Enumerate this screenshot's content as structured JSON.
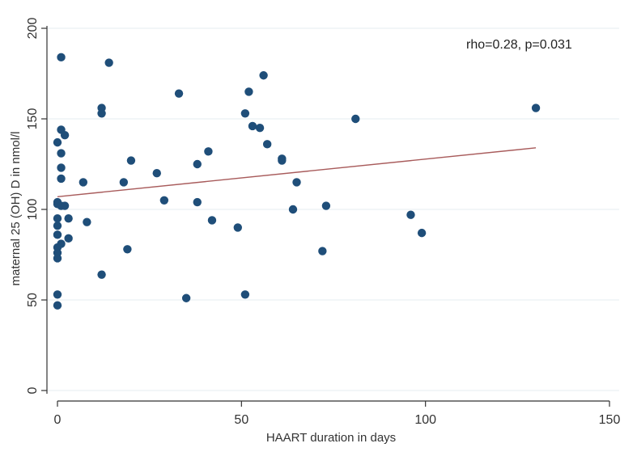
{
  "chart_data": {
    "type": "scatter",
    "title": "",
    "xlabel": "HAART duration in days",
    "ylabel": "maternal 25 (OH) D in nmol/l",
    "xlim": [
      0,
      150
    ],
    "ylim": [
      0,
      200
    ],
    "x_ticks": [
      "0",
      "50",
      "100",
      "150"
    ],
    "y_ticks": [
      "0",
      "50",
      "100",
      "150",
      "200"
    ],
    "grid": true,
    "annotation": "rho=0.28, p=0.031",
    "fit_line": {
      "x": [
        0,
        130
      ],
      "y": [
        107,
        134
      ]
    },
    "colors": {
      "points": "#1f4e79",
      "fit_line": "#a85b5b",
      "grid": "#e6ecf0",
      "axis": "#333333"
    },
    "points": [
      {
        "x": 1,
        "y": 184
      },
      {
        "x": 14,
        "y": 181
      },
      {
        "x": 56,
        "y": 174
      },
      {
        "x": 52,
        "y": 165
      },
      {
        "x": 33,
        "y": 164
      },
      {
        "x": 130,
        "y": 156
      },
      {
        "x": 12,
        "y": 156
      },
      {
        "x": 12,
        "y": 153
      },
      {
        "x": 51,
        "y": 153
      },
      {
        "x": 81,
        "y": 150
      },
      {
        "x": 53,
        "y": 146
      },
      {
        "x": 55,
        "y": 145
      },
      {
        "x": 1,
        "y": 144
      },
      {
        "x": 2,
        "y": 141
      },
      {
        "x": 0,
        "y": 137
      },
      {
        "x": 57,
        "y": 136
      },
      {
        "x": 41,
        "y": 132
      },
      {
        "x": 1,
        "y": 131
      },
      {
        "x": 61,
        "y": 128
      },
      {
        "x": 61,
        "y": 127
      },
      {
        "x": 20,
        "y": 127
      },
      {
        "x": 38,
        "y": 125
      },
      {
        "x": 1,
        "y": 123
      },
      {
        "x": 27,
        "y": 120
      },
      {
        "x": 1,
        "y": 117
      },
      {
        "x": 7,
        "y": 115
      },
      {
        "x": 18,
        "y": 115
      },
      {
        "x": 65,
        "y": 115
      },
      {
        "x": 29,
        "y": 105
      },
      {
        "x": 0,
        "y": 104
      },
      {
        "x": 38,
        "y": 104
      },
      {
        "x": 0,
        "y": 103
      },
      {
        "x": 1,
        "y": 102
      },
      {
        "x": 2,
        "y": 102
      },
      {
        "x": 73,
        "y": 102
      },
      {
        "x": 64,
        "y": 100
      },
      {
        "x": 96,
        "y": 97
      },
      {
        "x": 0,
        "y": 95
      },
      {
        "x": 3,
        "y": 95
      },
      {
        "x": 42,
        "y": 94
      },
      {
        "x": 8,
        "y": 93
      },
      {
        "x": 0,
        "y": 91
      },
      {
        "x": 49,
        "y": 90
      },
      {
        "x": 99,
        "y": 87
      },
      {
        "x": 0,
        "y": 86
      },
      {
        "x": 3,
        "y": 84
      },
      {
        "x": 1,
        "y": 81
      },
      {
        "x": 0,
        "y": 79
      },
      {
        "x": 19,
        "y": 78
      },
      {
        "x": 72,
        "y": 77
      },
      {
        "x": 0,
        "y": 76
      },
      {
        "x": 0,
        "y": 73
      },
      {
        "x": 12,
        "y": 64
      },
      {
        "x": 0,
        "y": 53
      },
      {
        "x": 51,
        "y": 53
      },
      {
        "x": 35,
        "y": 51
      },
      {
        "x": 0,
        "y": 47
      }
    ]
  }
}
